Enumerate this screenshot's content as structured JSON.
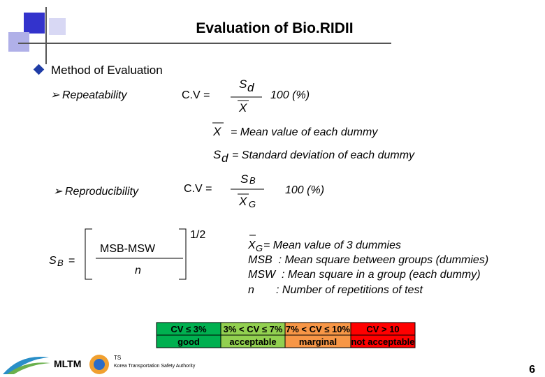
{
  "title": "Evaluation of Bio.RIDII",
  "section": "Method of Evaluation",
  "repeatability": {
    "label": "Repeatability",
    "cv": "C.V =",
    "num": "S",
    "num_sub": "d",
    "den": "X",
    "factor": "100 (%)"
  },
  "repeatability_defs": [
    {
      "symbol": "X",
      "sub": "",
      "text": "=  Mean value of each dummy"
    },
    {
      "symbol": "S",
      "sub": "d",
      "text": "=  Standard deviation of each dummy"
    }
  ],
  "reproducibility": {
    "label": "Reproducibility",
    "cv": "C.V =",
    "num": "S",
    "num_sub": "B",
    "den": "X",
    "den_sub": "G",
    "factor": "100 (%)"
  },
  "sb_formula": {
    "lhs": "S",
    "lhs_sub": "B",
    "eq": "=",
    "numerator": "MSB-MSW",
    "denominator": "n",
    "power": "1/2"
  },
  "reproducibility_defs": [
    {
      "symbol": "X",
      "sub": "G",
      "text": " = Mean value of 3 dummies"
    },
    {
      "text": "MSB  : Mean square between groups (dummies)"
    },
    {
      "text": "MSW  : Mean square in a group (each dummy)"
    },
    {
      "text": "n       : Number of repetitions of test"
    }
  ],
  "table": {
    "rows": [
      [
        "CV ≤ 3%",
        "3% < CV ≤ 7%",
        "7% < CV ≤ 10%",
        "CV > 10"
      ],
      [
        "good",
        "acceptable",
        "marginal",
        "not acceptable"
      ]
    ]
  },
  "footer": {
    "logo1": "MLTM",
    "logo2": "TS",
    "logo2_text": "Korea Transportation Safety Authority",
    "page": "6"
  }
}
